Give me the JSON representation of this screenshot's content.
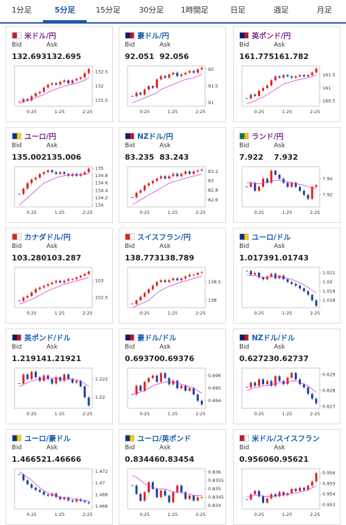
{
  "tabs": [
    "1分足",
    "5分足",
    "15分足",
    "30分足",
    "1時間足",
    "日足",
    "週足",
    "月足"
  ],
  "active_tab": 1,
  "labels": {
    "bid": "Bid",
    "ask": "Ask"
  },
  "time_labels": [
    "0:25",
    "1:25",
    "2:25"
  ],
  "cards": [
    {
      "pair": "米ドル/円",
      "visited": true,
      "bid": "132.693",
      "ask": "132.695",
      "chart": {
        "type": "candlestick",
        "ylim": [
          131.3,
          132.7
        ],
        "yticks": [
          132.5,
          132,
          131.5
        ],
        "closes": [
          131.45,
          131.55,
          131.5,
          131.65,
          131.75,
          131.8,
          131.95,
          132.05,
          132.1,
          132.05,
          132.15,
          132.2,
          132.1,
          132.2,
          132.25,
          132.3,
          132.45,
          132.6
        ],
        "ma": [
          131.4,
          131.45,
          131.5,
          131.55,
          131.6,
          131.65,
          131.7,
          131.78,
          131.85,
          131.9,
          131.95,
          132.0,
          132.03,
          132.07,
          132.1,
          132.15,
          132.2,
          132.3
        ]
      }
    },
    {
      "pair": "豪ドル/円",
      "visited": false,
      "bid": "92.051",
      "ask": "92.056",
      "chart": {
        "type": "candlestick",
        "ylim": [
          90.9,
          92.1
        ],
        "yticks": [
          92,
          91.5,
          91
        ],
        "closes": [
          91.2,
          91.3,
          91.25,
          91.4,
          91.5,
          91.45,
          91.7,
          91.8,
          91.75,
          91.85,
          91.9,
          91.8,
          91.85,
          91.9,
          91.95,
          91.9,
          92.0,
          92.05
        ],
        "ma": [
          91.0,
          91.05,
          91.1,
          91.15,
          91.2,
          91.25,
          91.3,
          91.4,
          91.45,
          91.5,
          91.55,
          91.6,
          91.65,
          91.7,
          91.72,
          91.75,
          91.8,
          91.85
        ]
      }
    },
    {
      "pair": "英ポンド/円",
      "visited": true,
      "bid": "161.775",
      "ask": "161.782",
      "chart": {
        "type": "candlestick",
        "ylim": [
          160.3,
          161.85
        ],
        "yticks": [
          161.5,
          161,
          160.5
        ],
        "closes": [
          160.6,
          160.75,
          160.7,
          160.9,
          161.0,
          161.1,
          161.3,
          161.45,
          161.4,
          161.5,
          161.45,
          161.4,
          161.45,
          161.5,
          161.45,
          161.5,
          161.6,
          161.75
        ],
        "ma": [
          160.4,
          160.45,
          160.5,
          160.6,
          160.65,
          160.75,
          160.85,
          160.95,
          161.05,
          161.15,
          161.2,
          161.25,
          161.3,
          161.33,
          161.36,
          161.4,
          161.45,
          161.5
        ]
      }
    },
    {
      "pair": "ユーロ/円",
      "visited": true,
      "bid": "135.002",
      "ask": "135.006",
      "chart": {
        "type": "candlestick",
        "ylim": [
          133.95,
          135.05
        ],
        "yticks": [
          135,
          134.8,
          134.6,
          134.4,
          134.2,
          134
        ],
        "closes": [
          134.3,
          134.45,
          134.6,
          134.7,
          134.75,
          134.85,
          134.9,
          134.95,
          134.9,
          134.85,
          134.9,
          134.85,
          134.8,
          134.85,
          134.8,
          134.85,
          134.9,
          135.0
        ],
        "ma": [
          134.0,
          134.1,
          134.2,
          134.3,
          134.4,
          134.5,
          134.6,
          134.65,
          134.7,
          134.75,
          134.78,
          134.8,
          134.82,
          134.82,
          134.82,
          134.83,
          134.84,
          134.86
        ]
      }
    },
    {
      "pair": "NZドル/円",
      "visited": false,
      "bid": "83.235",
      "ask": "83.243",
      "chart": {
        "type": "candlestick",
        "ylim": [
          82.45,
          83.3
        ],
        "yticks": [
          83.2,
          83,
          82.8,
          82.6
        ],
        "closes": [
          82.65,
          82.75,
          82.8,
          82.9,
          82.95,
          83.0,
          83.05,
          83.1,
          83.05,
          83.1,
          83.15,
          83.1,
          83.15,
          83.2,
          83.15,
          83.2,
          83.22,
          83.24
        ],
        "ma": [
          82.5,
          82.55,
          82.6,
          82.65,
          82.7,
          82.75,
          82.8,
          82.85,
          82.9,
          82.95,
          82.98,
          83.0,
          83.03,
          83.06,
          83.08,
          83.1,
          83.12,
          83.14
        ]
      }
    },
    {
      "pair": "ランド/円",
      "visited": true,
      "bid": "7.922",
      "ask": "7.932",
      "chart": {
        "type": "candlestick",
        "ylim": [
          7.905,
          7.955
        ],
        "yticks": [
          7.94,
          7.92
        ],
        "closes": [
          7.93,
          7.935,
          7.925,
          7.93,
          7.94,
          7.935,
          7.95,
          7.945,
          7.94,
          7.935,
          7.93,
          7.935,
          7.93,
          7.925,
          7.92,
          7.915,
          7.93,
          7.932
        ],
        "ma": [
          7.935,
          7.935,
          7.934,
          7.934,
          7.935,
          7.936,
          7.937,
          7.938,
          7.938,
          7.937,
          7.936,
          7.935,
          7.934,
          7.933,
          7.932,
          7.93,
          7.929,
          7.928
        ]
      }
    },
    {
      "pair": "カナダドル/円",
      "visited": false,
      "bid": "103.280",
      "ask": "103.287",
      "chart": {
        "type": "candlestick",
        "ylim": [
          102.2,
          103.4
        ],
        "yticks": [
          103,
          102.5
        ],
        "closes": [
          102.4,
          102.5,
          102.55,
          102.65,
          102.75,
          102.8,
          102.85,
          102.9,
          102.95,
          103.0,
          102.95,
          103.0,
          103.05,
          103.05,
          103.1,
          103.15,
          103.2,
          103.28
        ],
        "ma": [
          102.3,
          102.35,
          102.4,
          102.45,
          102.5,
          102.57,
          102.63,
          102.7,
          102.75,
          102.8,
          102.85,
          102.9,
          102.93,
          102.96,
          103.0,
          103.03,
          103.06,
          103.1
        ]
      }
    },
    {
      "pair": "スイスフラン/円",
      "visited": false,
      "bid": "138.773",
      "ask": "138.789",
      "chart": {
        "type": "candlestick",
        "ylim": [
          137.8,
          138.9
        ],
        "yticks": [
          138.5,
          138
        ],
        "closes": [
          137.9,
          138.0,
          138.1,
          138.2,
          138.3,
          138.4,
          138.5,
          138.55,
          138.5,
          138.55,
          138.6,
          138.55,
          138.6,
          138.65,
          138.7,
          138.7,
          138.75,
          138.77
        ],
        "ma": [
          137.8,
          137.85,
          137.9,
          137.95,
          138.0,
          138.1,
          138.2,
          138.27,
          138.33,
          138.38,
          138.42,
          138.46,
          138.5,
          138.53,
          138.56,
          138.6,
          138.63,
          138.66
        ]
      }
    },
    {
      "pair": "ユーロ/ドル",
      "visited": false,
      "bid": "1.01739",
      "ask": "1.01743",
      "chart": {
        "type": "candlestick",
        "ylim": [
          1.0172,
          1.0216
        ],
        "yticks": [
          1.021,
          1.02,
          1.019,
          1.018
        ],
        "closes": [
          1.0212,
          1.0208,
          1.021,
          1.0205,
          1.0203,
          1.0206,
          1.0209,
          1.0204,
          1.0207,
          1.0203,
          1.02,
          1.0198,
          1.0196,
          1.0193,
          1.019,
          1.0186,
          1.018,
          1.0174
        ],
        "ma": [
          1.0208,
          1.0207,
          1.0207,
          1.0206,
          1.0205,
          1.0205,
          1.0206,
          1.0206,
          1.0206,
          1.0205,
          1.0204,
          1.0203,
          1.0201,
          1.0199,
          1.0197,
          1.0194,
          1.0191,
          1.0188
        ]
      }
    },
    {
      "pair": "英ポンド/ドル",
      "visited": false,
      "bid": "1.21914",
      "ask": "1.21921",
      "chart": {
        "type": "candlestick",
        "ylim": [
          1.2188,
          1.2232
        ],
        "yticks": [
          1.222,
          1.22
        ],
        "closes": [
          1.2215,
          1.2225,
          1.222,
          1.2228,
          1.2222,
          1.2218,
          1.2224,
          1.222,
          1.2215,
          1.2222,
          1.2218,
          1.2225,
          1.222,
          1.2216,
          1.2218,
          1.2212,
          1.22,
          1.2191
        ],
        "ma": [
          1.2212,
          1.2214,
          1.2216,
          1.2218,
          1.2219,
          1.222,
          1.222,
          1.2221,
          1.2221,
          1.2221,
          1.222,
          1.222,
          1.222,
          1.222,
          1.2219,
          1.2218,
          1.2215,
          1.2212
        ]
      }
    },
    {
      "pair": "豪ドル/ドル",
      "visited": false,
      "bid": "0.69370",
      "ask": "0.69376",
      "chart": {
        "type": "candlestick",
        "ylim": [
          0.6934,
          0.6966
        ],
        "yticks": [
          0.696,
          0.695,
          0.694
        ],
        "closes": [
          0.6945,
          0.6952,
          0.6948,
          0.6955,
          0.6958,
          0.696,
          0.6955,
          0.6962,
          0.6958,
          0.6953,
          0.6956,
          0.695,
          0.6952,
          0.6948,
          0.695,
          0.6945,
          0.694,
          0.6937
        ],
        "ma": [
          0.6945,
          0.6946,
          0.6947,
          0.6948,
          0.695,
          0.6952,
          0.6953,
          0.6954,
          0.6955,
          0.6955,
          0.6955,
          0.6954,
          0.6953,
          0.6952,
          0.6951,
          0.695,
          0.6948,
          0.6946
        ]
      }
    },
    {
      "pair": "NZドル/ドル",
      "visited": false,
      "bid": "0.62723",
      "ask": "0.62737",
      "chart": {
        "type": "candlestick",
        "ylim": [
          0.6269,
          0.6294
        ],
        "yticks": [
          0.629,
          0.628,
          0.627
        ],
        "closes": [
          0.6282,
          0.6285,
          0.6283,
          0.6287,
          0.6284,
          0.6286,
          0.6283,
          0.6289,
          0.6286,
          0.6284,
          0.6288,
          0.6291,
          0.6287,
          0.6284,
          0.6282,
          0.6278,
          0.6275,
          0.6272
        ],
        "ma": [
          0.628,
          0.6281,
          0.6282,
          0.6282,
          0.6283,
          0.6283,
          0.6284,
          0.6284,
          0.6285,
          0.6285,
          0.6285,
          0.6286,
          0.6286,
          0.6285,
          0.6284,
          0.6283,
          0.6281,
          0.6279
        ]
      }
    },
    {
      "pair": "ユーロ/豪ドル",
      "visited": false,
      "bid": "1.46652",
      "ask": "1.46666",
      "chart": {
        "type": "candlestick",
        "ylim": [
          1.4655,
          1.4725
        ],
        "yticks": [
          1.472,
          1.47,
          1.468,
          1.466
        ],
        "closes": [
          1.4715,
          1.4705,
          1.4698,
          1.4692,
          1.4688,
          1.4685,
          1.468,
          1.4678,
          1.4682,
          1.4676,
          1.4672,
          1.4675,
          1.467,
          1.4668,
          1.4672,
          1.4669,
          1.4667,
          1.4665
        ],
        "ma": [
          1.472,
          1.4715,
          1.471,
          1.4705,
          1.4698,
          1.4692,
          1.4687,
          1.4683,
          1.468,
          1.4678,
          1.4676,
          1.4675,
          1.4674,
          1.4673,
          1.4672,
          1.4671,
          1.467,
          1.4669
        ]
      }
    },
    {
      "pair": "ユーロ/英ポンド",
      "visited": false,
      "bid": "0.83446",
      "ask": "0.83454",
      "chart": {
        "type": "candlestick",
        "ylim": [
          0.8338,
          0.8362
        ],
        "yticks": [
          0.836,
          0.8355,
          0.835,
          0.8345,
          0.834
        ],
        "closes": [
          0.8352,
          0.8347,
          0.8343,
          0.8348,
          0.8354,
          0.835,
          0.8345,
          0.8349,
          0.8346,
          0.8342,
          0.8348,
          0.8352,
          0.8348,
          0.8344,
          0.8346,
          0.8343,
          0.8345,
          0.8345
        ],
        "ma": [
          0.8358,
          0.8357,
          0.8355,
          0.8353,
          0.8352,
          0.8351,
          0.835,
          0.835,
          0.835,
          0.8349,
          0.8348,
          0.8348,
          0.8348,
          0.8347,
          0.8347,
          0.8346,
          0.8346,
          0.8346
        ]
      }
    },
    {
      "pair": "米ドル/スイスフラン",
      "visited": false,
      "bid": "0.95606",
      "ask": "0.95621",
      "chart": {
        "type": "candlestick",
        "ylim": [
          0.9526,
          0.9564
        ],
        "yticks": [
          0.956,
          0.955,
          0.954,
          0.953
        ],
        "closes": [
          0.9535,
          0.954,
          0.9543,
          0.9538,
          0.9532,
          0.9536,
          0.954,
          0.9538,
          0.9542,
          0.9539,
          0.9541,
          0.9545,
          0.9543,
          0.9546,
          0.9544,
          0.9548,
          0.9552,
          0.956
        ],
        "ma": [
          0.9538,
          0.9538,
          0.9539,
          0.9539,
          0.9538,
          0.9538,
          0.9538,
          0.9538,
          0.9539,
          0.9539,
          0.954,
          0.9541,
          0.9541,
          0.9542,
          0.9543,
          0.9544,
          0.9546,
          0.9548
        ]
      }
    }
  ]
}
